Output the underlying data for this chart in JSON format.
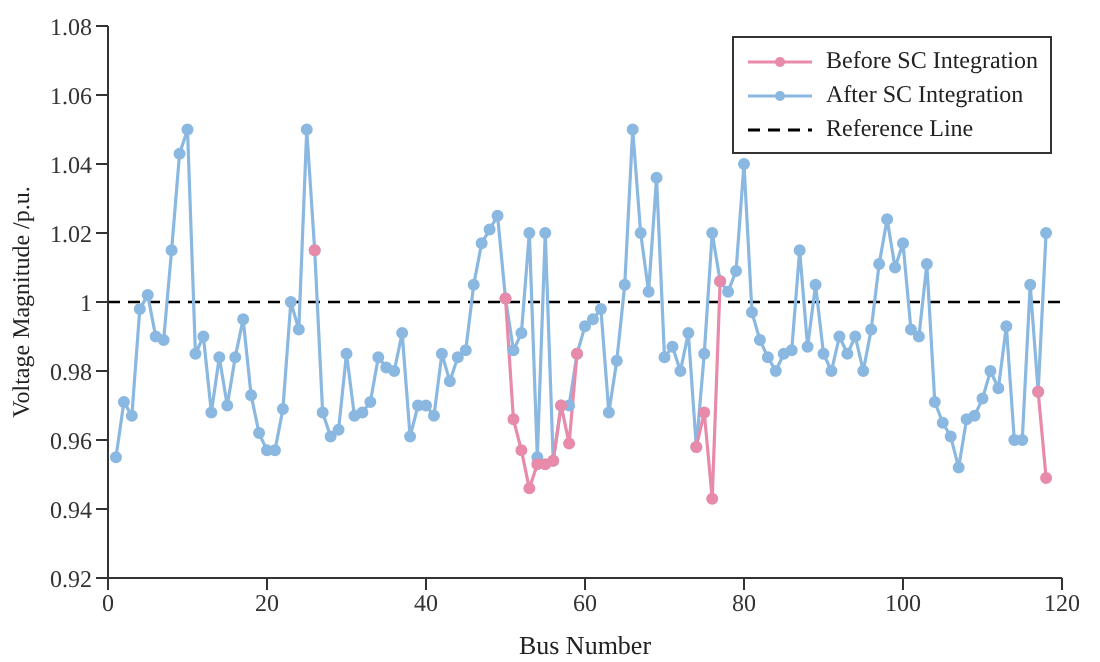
{
  "chart_data": {
    "type": "line",
    "xlabel": "Bus Number",
    "ylabel": "Voltage Magnitude /p.u.",
    "x": [
      1,
      2,
      3,
      4,
      5,
      6,
      7,
      8,
      9,
      10,
      11,
      12,
      13,
      14,
      15,
      16,
      17,
      18,
      19,
      20,
      21,
      22,
      23,
      24,
      25,
      26,
      27,
      28,
      29,
      30,
      31,
      32,
      33,
      34,
      35,
      36,
      37,
      38,
      39,
      40,
      41,
      42,
      43,
      44,
      45,
      46,
      47,
      48,
      49,
      50,
      51,
      52,
      53,
      54,
      55,
      56,
      57,
      58,
      59,
      60,
      61,
      62,
      63,
      64,
      65,
      66,
      67,
      68,
      69,
      70,
      71,
      72,
      73,
      74,
      75,
      76,
      77,
      78,
      79,
      80,
      81,
      82,
      83,
      84,
      85,
      86,
      87,
      88,
      89,
      90,
      91,
      92,
      93,
      94,
      95,
      96,
      97,
      98,
      99,
      100,
      101,
      102,
      103,
      104,
      105,
      106,
      107,
      108,
      109,
      110,
      111,
      112,
      113,
      114,
      115,
      116,
      117,
      118
    ],
    "series": [
      {
        "name": "Before SC Integration",
        "color": "#e88aaa",
        "values": [
          null,
          null,
          null,
          null,
          null,
          null,
          null,
          null,
          null,
          null,
          null,
          null,
          null,
          null,
          null,
          null,
          null,
          null,
          null,
          null,
          null,
          null,
          null,
          null,
          null,
          1.015,
          null,
          null,
          null,
          null,
          null,
          null,
          null,
          null,
          null,
          null,
          null,
          null,
          null,
          null,
          null,
          null,
          null,
          null,
          null,
          null,
          null,
          null,
          null,
          1.001,
          0.966,
          0.957,
          0.946,
          0.953,
          0.953,
          0.954,
          0.97,
          0.959,
          0.985,
          null,
          null,
          null,
          null,
          null,
          null,
          null,
          null,
          null,
          null,
          null,
          null,
          null,
          null,
          0.958,
          0.968,
          0.943,
          1.006,
          null,
          null,
          null,
          null,
          null,
          null,
          null,
          null,
          null,
          null,
          null,
          null,
          null,
          null,
          null,
          null,
          null,
          null,
          null,
          null,
          null,
          null,
          null,
          null,
          null,
          null,
          null,
          null,
          null,
          null,
          null,
          null,
          null,
          null,
          null,
          null,
          null,
          null,
          null,
          0.974,
          0.949
        ]
      },
      {
        "name": "After SC Integration",
        "color": "#8ab8e0",
        "values": [
          0.955,
          0.971,
          0.967,
          0.998,
          1.002,
          0.99,
          0.989,
          1.015,
          1.043,
          1.05,
          0.985,
          0.99,
          0.968,
          0.984,
          0.97,
          0.984,
          0.995,
          0.973,
          0.962,
          0.957,
          0.957,
          0.969,
          1.0,
          0.992,
          1.05,
          1.015,
          0.968,
          0.961,
          0.963,
          0.985,
          0.967,
          0.968,
          0.971,
          0.984,
          0.981,
          0.98,
          0.991,
          0.961,
          0.97,
          0.97,
          0.967,
          0.985,
          0.977,
          0.984,
          0.986,
          1.005,
          1.017,
          1.021,
          1.025,
          1.001,
          0.986,
          0.991,
          1.02,
          0.955,
          1.02,
          0.954,
          0.97,
          0.97,
          0.985,
          0.993,
          0.995,
          0.998,
          0.968,
          0.983,
          1.005,
          1.05,
          1.02,
          1.003,
          1.036,
          0.984,
          0.987,
          0.98,
          0.991,
          0.958,
          0.985,
          1.02,
          1.006,
          1.003,
          1.009,
          1.04,
          0.997,
          0.989,
          0.984,
          0.98,
          0.985,
          0.986,
          1.015,
          0.987,
          1.005,
          0.985,
          0.98,
          0.99,
          0.985,
          0.99,
          0.98,
          0.992,
          1.011,
          1.024,
          1.01,
          1.017,
          0.992,
          0.99,
          1.011,
          0.971,
          0.965,
          0.961,
          0.952,
          0.966,
          0.967,
          0.972,
          0.98,
          0.975,
          0.993,
          0.96,
          0.96,
          1.005,
          0.974,
          1.02
        ]
      }
    ],
    "xlim": [
      0,
      120
    ],
    "xticks": [
      0,
      20,
      40,
      60,
      80,
      100,
      120
    ],
    "ylim": [
      0.92,
      1.08
    ],
    "yticks": [
      0.92,
      0.94,
      0.96,
      0.98,
      1,
      1.02,
      1.04,
      1.06,
      1.08
    ],
    "ref_lines": [
      {
        "axis": "y",
        "value": 1,
        "label": "Reference Line",
        "color": "#000000",
        "line_style": "dashed"
      }
    ],
    "legend": "top right",
    "marker": "circle",
    "line_style": "solid",
    "grid": false
  }
}
